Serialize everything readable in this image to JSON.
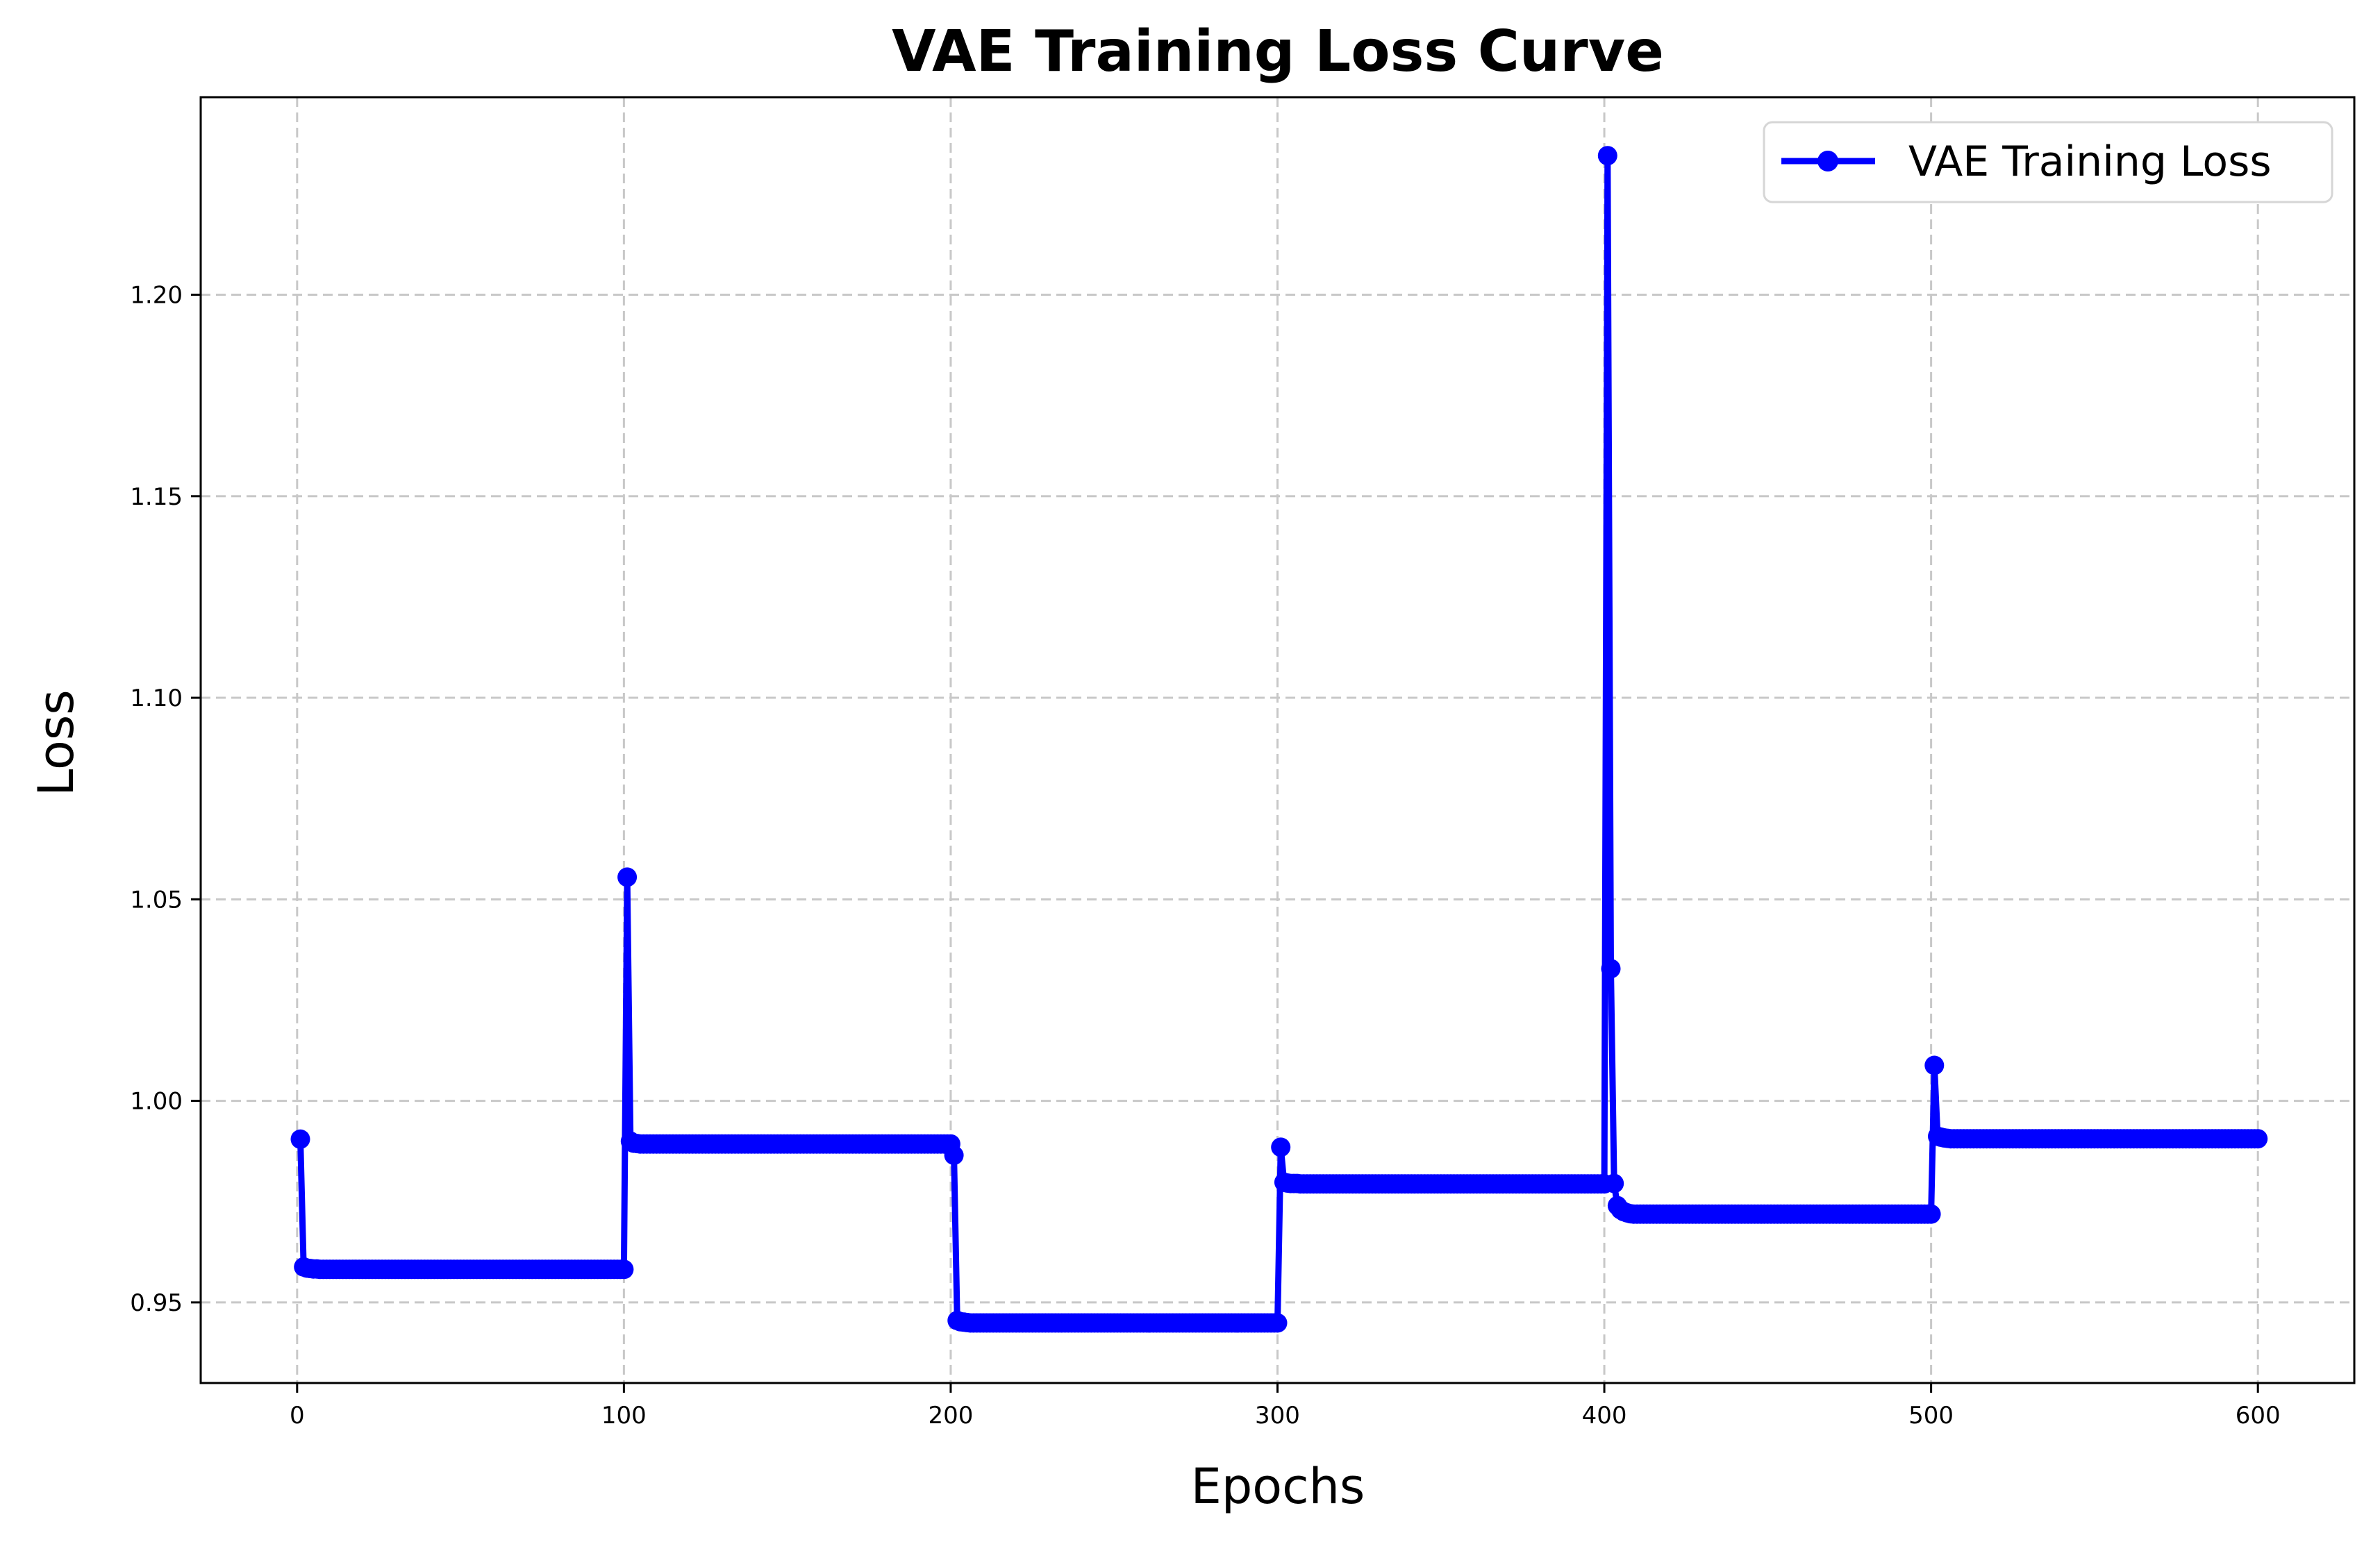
{
  "chart_data": {
    "type": "line",
    "title": "VAE Training Loss Curve",
    "xlabel": "Epochs",
    "ylabel": "Loss",
    "xlim": [
      -29.5,
      629.5
    ],
    "ylim": [
      0.93,
      1.249
    ],
    "xticks": [
      0,
      100,
      200,
      300,
      400,
      500,
      600
    ],
    "xtick_labels": [
      "0",
      "100",
      "200",
      "300",
      "400",
      "500",
      "600"
    ],
    "yticks": [
      0.95,
      1.0,
      1.05,
      1.1,
      1.15,
      1.2
    ],
    "ytick_labels": [
      "0.95",
      "1.00",
      "1.05",
      "1.10",
      "1.15",
      "1.20"
    ],
    "grid": true,
    "legend_position": "top-right",
    "series": [
      {
        "name": "VAE Training Loss",
        "color": "#0000ff",
        "marker": "circle",
        "segments": [
          {
            "start_epoch": 1,
            "end_epoch": 100,
            "values": [
              0.9905,
              0.9588,
              0.9585,
              0.9584,
              0.9583,
              0.9583,
              0.9582,
              0.9582,
              0.9582,
              0.9582
            ]
          },
          {
            "start_epoch": 101,
            "end_epoch": 200,
            "values": [
              1.0555,
              0.99,
              0.9895,
              0.9894,
              0.9893,
              0.9893,
              0.9893,
              0.9893,
              0.9893,
              0.9893
            ]
          },
          {
            "start_epoch": 201,
            "end_epoch": 300,
            "values": [
              0.9865,
              0.9455,
              0.9452,
              0.9451,
              0.945,
              0.9449,
              0.9449,
              0.9449,
              0.9449,
              0.9449
            ]
          },
          {
            "start_epoch": 301,
            "end_epoch": 400,
            "values": [
              0.9885,
              0.9798,
              0.9796,
              0.9795,
              0.9795,
              0.9795,
              0.9794,
              0.9794,
              0.9794,
              0.9794
            ]
          },
          {
            "start_epoch": 401,
            "end_epoch": 500,
            "values": [
              1.2345,
              1.0328,
              0.9795,
              0.974,
              0.973,
              0.9725,
              0.9722,
              0.972,
              0.9719,
              0.9719
            ]
          },
          {
            "start_epoch": 501,
            "end_epoch": 600,
            "values": [
              1.0088,
              0.9912,
              0.991,
              0.9908,
              0.9907,
              0.9906,
              0.9906,
              0.9906,
              0.9906,
              0.9906
            ]
          }
        ]
      }
    ]
  }
}
